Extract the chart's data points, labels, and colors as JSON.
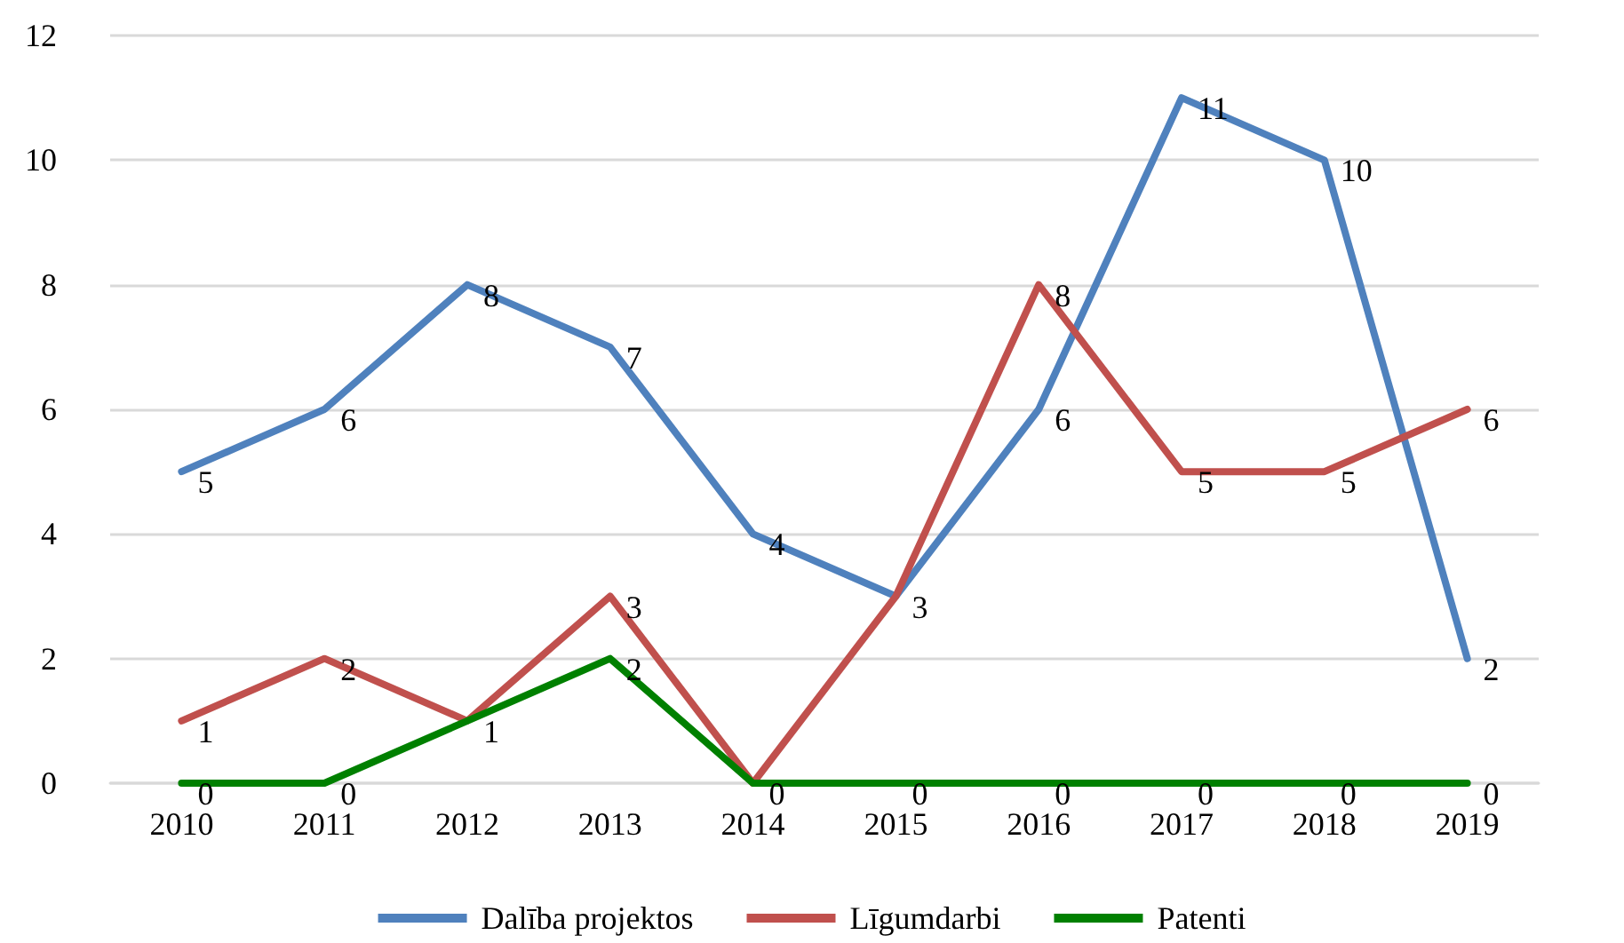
{
  "chart_data": {
    "type": "line",
    "categories": [
      "2010",
      "2011",
      "2012",
      "2013",
      "2014",
      "2015",
      "2016",
      "2017",
      "2018",
      "2019"
    ],
    "series": [
      {
        "name": "Dalība projektos",
        "color": "#4f81bd",
        "values": [
          5,
          6,
          8,
          7,
          4,
          3,
          6,
          11,
          10,
          2
        ]
      },
      {
        "name": "Līgumdarbi",
        "color": "#c0504d",
        "values": [
          1,
          2,
          1,
          3,
          0,
          3,
          8,
          5,
          5,
          6
        ],
        "value_labels": [
          "1",
          "2",
          "1",
          "3",
          "0",
          null,
          "8",
          "5",
          "5",
          "6"
        ]
      },
      {
        "name": "Patenti",
        "color": "#008000",
        "values": [
          0,
          0,
          1,
          2,
          0,
          0,
          0,
          0,
          0,
          0
        ],
        "value_labels": [
          "0",
          "0",
          null,
          "2",
          null,
          "0",
          "0",
          "0",
          "0",
          "0"
        ]
      }
    ],
    "ylim": [
      0,
      12
    ],
    "yticks": [
      0,
      2,
      4,
      6,
      8,
      10,
      12
    ],
    "grid": "y",
    "legend": "bottom",
    "data_labels": true,
    "marker": "none",
    "line_style": "solid"
  }
}
